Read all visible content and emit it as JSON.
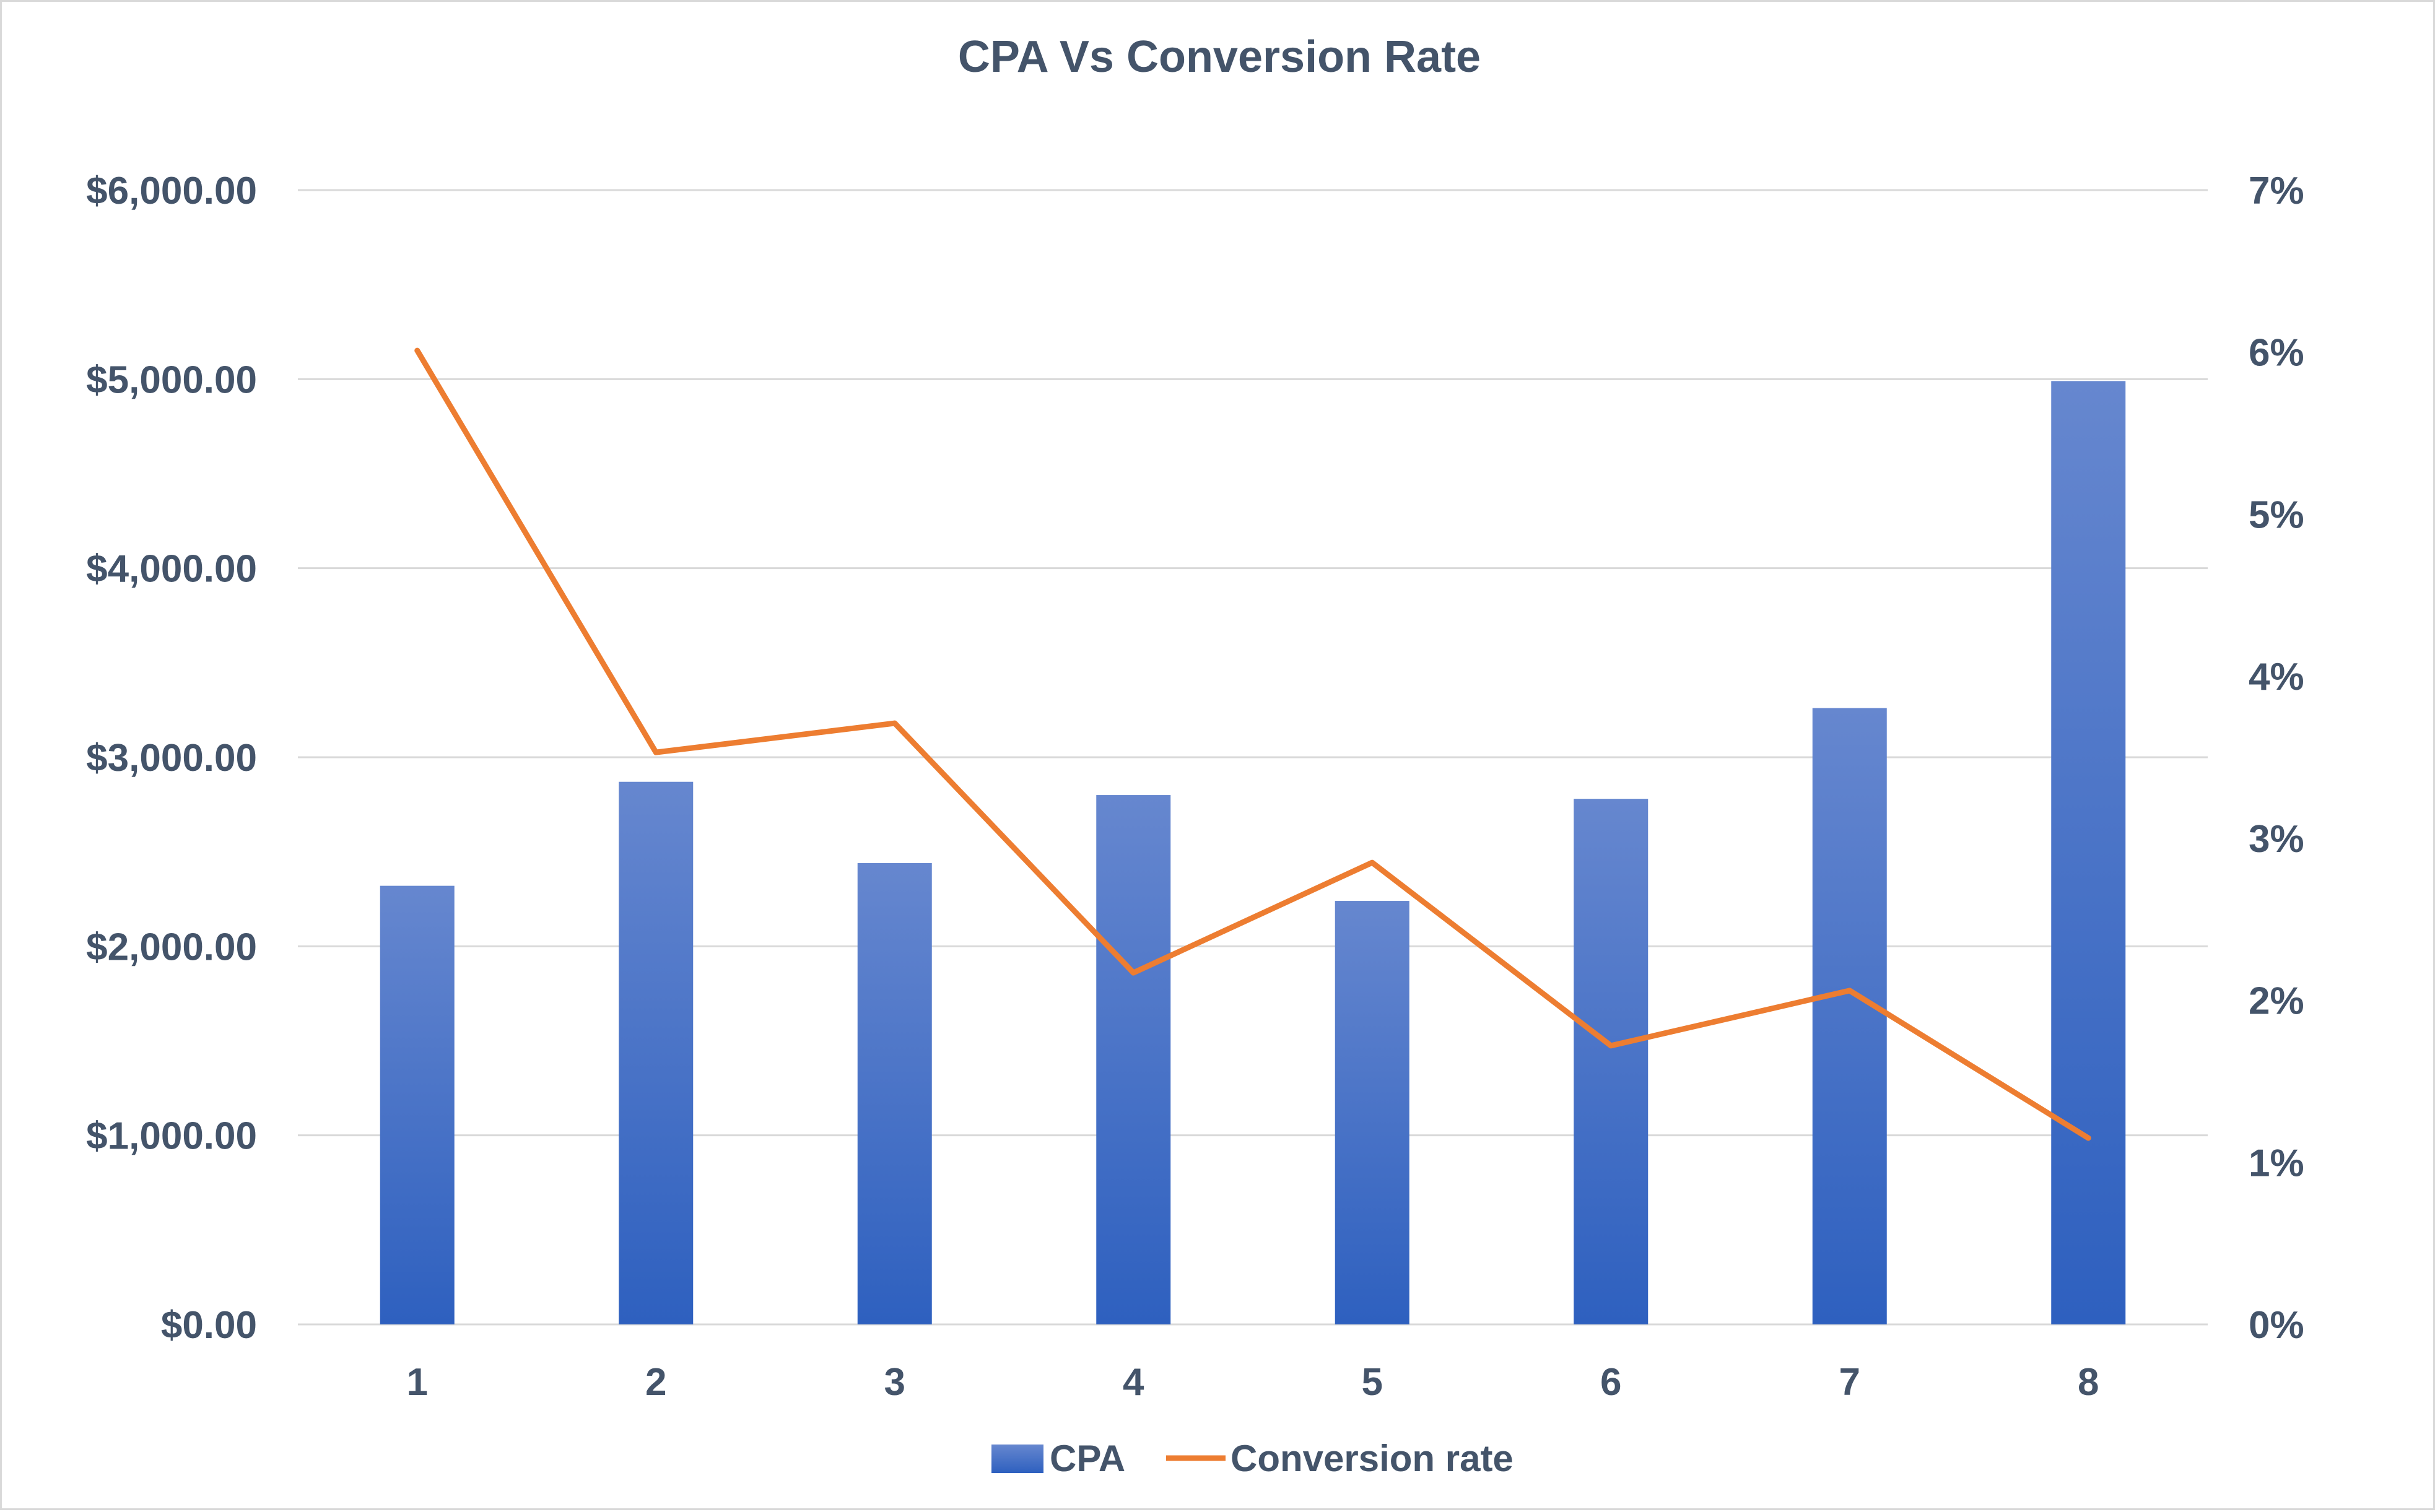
{
  "chart_data": {
    "type": "bar",
    "title": "CPA Vs Conversion Rate",
    "categories": [
      "1",
      "2",
      "3",
      "4",
      "5",
      "6",
      "7",
      "8"
    ],
    "series": [
      {
        "name": "CPA",
        "type": "bar",
        "axis": "left",
        "values": [
          2320,
          2870,
          2440,
          2800,
          2240,
          2780,
          3260,
          4990
        ]
      },
      {
        "name": "Conversion rate",
        "type": "line",
        "axis": "right",
        "values": [
          0.0601,
          0.0353,
          0.0371,
          0.0217,
          0.0285,
          0.0172,
          0.0206,
          0.0115
        ]
      }
    ],
    "y_left": {
      "range": [
        0,
        6000
      ],
      "ticks": [
        0,
        1000,
        2000,
        3000,
        4000,
        5000,
        6000
      ],
      "tick_labels": [
        "$0.00",
        "$1,000.00",
        "$2,000.00",
        "$3,000.00",
        "$4,000.00",
        "$5,000.00",
        "$6,000.00"
      ]
    },
    "y_right": {
      "range": [
        0,
        0.07
      ],
      "ticks": [
        0,
        0.01,
        0.02,
        0.03,
        0.04,
        0.05,
        0.06,
        0.07
      ],
      "tick_labels": [
        "0%",
        "1%",
        "2%",
        "3%",
        "4%",
        "5%",
        "6%",
        "7%"
      ]
    },
    "grid": true,
    "legend": [
      "CPA",
      "Conversion rate"
    ],
    "legend_position": "bottom",
    "colors": {
      "bar_top": "#6687cf",
      "bar_bottom": "#2e60bf",
      "line": "#ed7d31",
      "grid": "#d9d9d9",
      "text": "#44546a"
    }
  }
}
